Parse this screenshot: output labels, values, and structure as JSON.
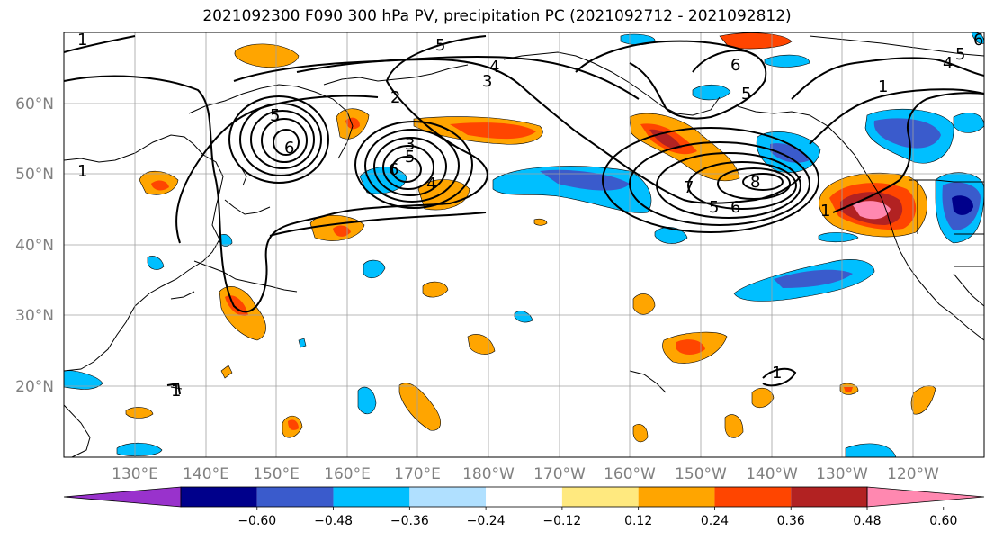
{
  "title": "2021092300 F090 300 hPa PV, precipitation PC (2021092712 - 2021092812)",
  "lat_labels": [
    "60°N",
    "50°N",
    "40°N",
    "30°N",
    "20°N"
  ],
  "lon_labels": [
    "130°E",
    "140°E",
    "150°E",
    "160°E",
    "170°E",
    "180°W",
    "170°W",
    "160°W",
    "150°W",
    "140°W",
    "130°W",
    "120°W"
  ],
  "colorbar": {
    "colors": [
      "#9932cc",
      "#00008b",
      "#3a5bcc",
      "#00bfff",
      "#b0e0ff",
      "#ffffff",
      "#ffe97f",
      "#ffa500",
      "#ff4500",
      "#b22222",
      "#ff88b0"
    ],
    "tick_labels": [
      "−0.60",
      "−0.48",
      "−0.36",
      "−0.24",
      "−0.12",
      "0.12",
      "0.24",
      "0.36",
      "0.48",
      "0.60"
    ]
  },
  "pv_contour_labels": [
    "1",
    "5",
    "4",
    "3",
    "2",
    "5",
    "6",
    "3",
    "5",
    "4",
    "6",
    "6",
    "5",
    "6",
    "7",
    "5",
    "8",
    "1",
    "6",
    "4",
    "5",
    "1",
    "1",
    "1",
    "1"
  ],
  "colors": {
    "land_outline": "#000000",
    "grid": "#a0a0a0",
    "pv_contour": "#000000"
  }
}
